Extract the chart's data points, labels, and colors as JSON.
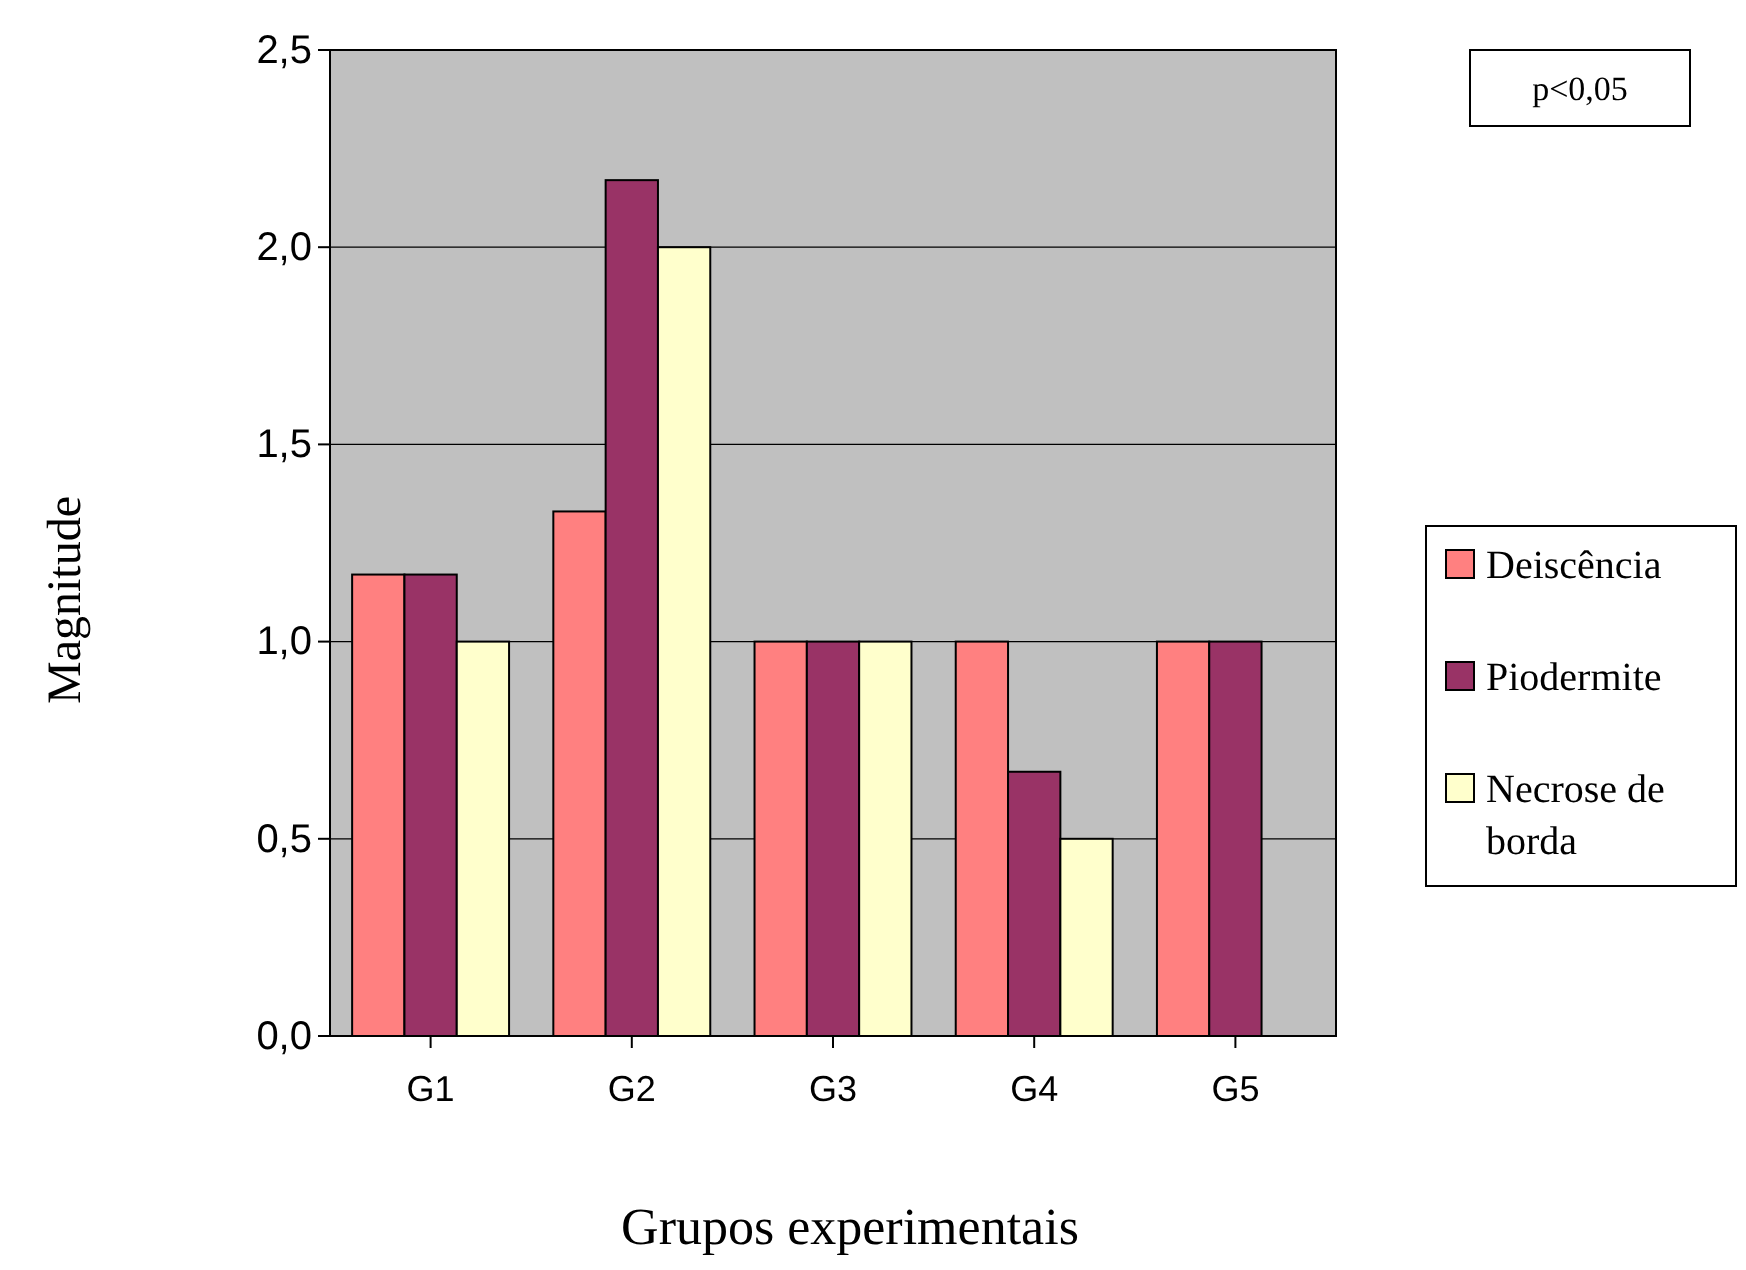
{
  "chart_data": {
    "type": "bar",
    "xlabel": "Grupos experimentais",
    "ylabel": "Magnitude",
    "categories": [
      "G1",
      "G2",
      "G3",
      "G4",
      "G5"
    ],
    "series": [
      {
        "name": "Deiscência",
        "color": "#ff8080",
        "values": [
          1.17,
          1.33,
          1.0,
          1.0,
          1.0
        ]
      },
      {
        "name": "Piodermite",
        "color": "#993366",
        "values": [
          1.17,
          2.17,
          1.0,
          0.67,
          1.0
        ]
      },
      {
        "name": "Necrose de borda",
        "color": "#ffffcc",
        "values": [
          1.0,
          2.0,
          1.0,
          0.5,
          0
        ]
      }
    ],
    "ylim": [
      0,
      2.5
    ],
    "yticks": [
      {
        "value": 0,
        "label": "0,0"
      },
      {
        "value": 0.5,
        "label": "0,5"
      },
      {
        "value": 1,
        "label": "1,0"
      },
      {
        "value": 1.5,
        "label": "1,5"
      },
      {
        "value": 2,
        "label": "2,0"
      },
      {
        "value": 2.5,
        "label": "2,5"
      }
    ],
    "grid": "y",
    "legend": "right",
    "annotations": [
      "p<0,05"
    ]
  }
}
